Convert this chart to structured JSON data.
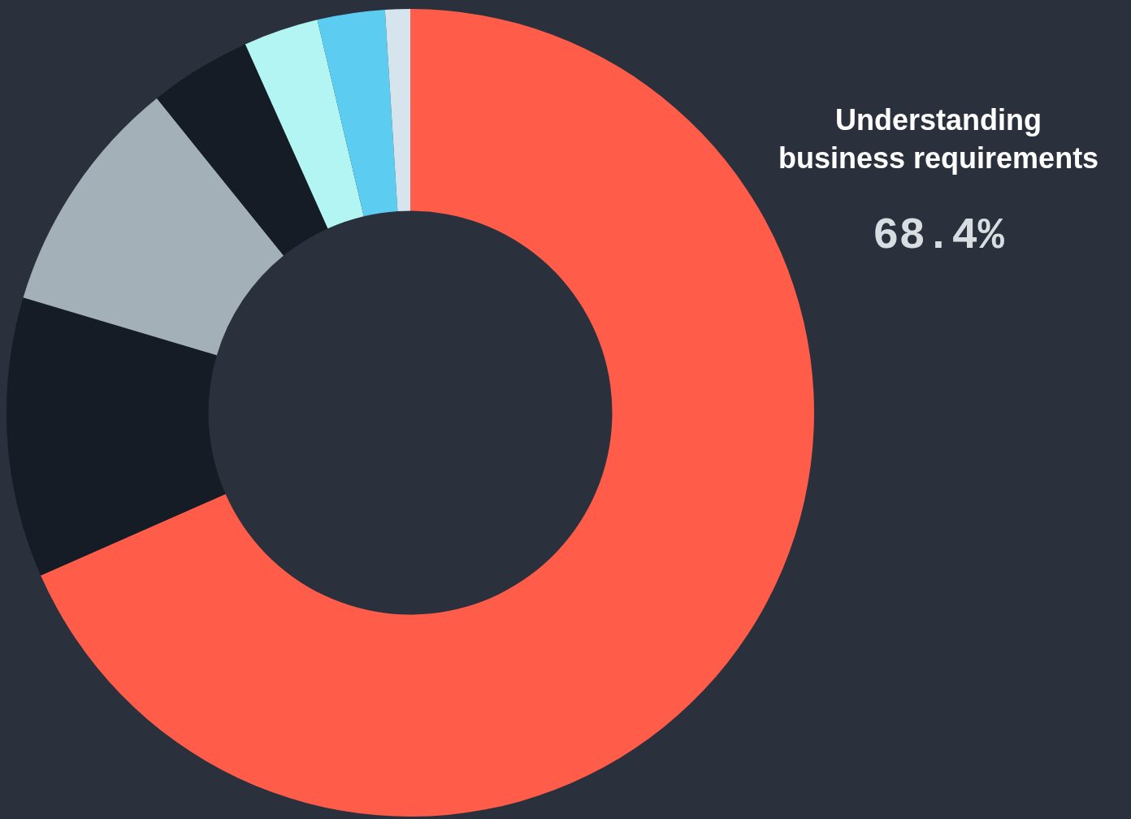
{
  "chart_data": {
    "type": "donut",
    "categories": [
      "Understanding\nbusiness requirements",
      null,
      null,
      null,
      null,
      null,
      null
    ],
    "values": [
      68.4,
      11.2,
      9.6,
      4.1,
      3.0,
      2.7,
      1.0
    ],
    "colors": [
      "#ff5c4a",
      "#161c26",
      "#a3b0b7",
      "#161c26",
      "#b3f5f2",
      "#5ccdf0",
      "#d5e4ed"
    ],
    "value_labels": [
      "68.4%",
      null,
      null,
      null,
      null,
      null,
      null
    ],
    "legend": false
  }
}
